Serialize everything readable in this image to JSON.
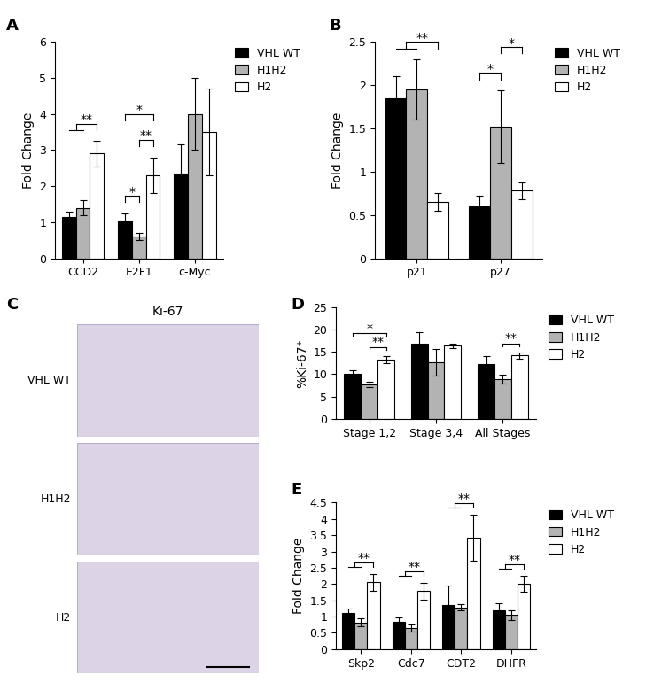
{
  "chart_data": [
    {
      "panel": "A",
      "type": "bar",
      "ylabel": "Fold Change",
      "categories": [
        "CCD2",
        "E2F1",
        "c-Myc"
      ],
      "series": [
        {
          "name": "VHL WT",
          "color": "#000000",
          "values": [
            1.15,
            1.05,
            2.35
          ],
          "errors": [
            0.15,
            0.2,
            0.8
          ]
        },
        {
          "name": "H1H2",
          "color": "#b3b3b3",
          "values": [
            1.4,
            0.6,
            4.0
          ],
          "errors": [
            0.2,
            0.1,
            1.0
          ]
        },
        {
          "name": "H2",
          "color": "#ffffff",
          "values": [
            2.9,
            2.3,
            3.5
          ],
          "errors": [
            0.35,
            0.5,
            1.2
          ]
        }
      ],
      "ylim": [
        0,
        6
      ],
      "yticks": [
        0,
        1,
        2,
        3,
        4,
        5,
        6
      ],
      "legend": "upper left",
      "significance": [
        {
          "category": "CCD2",
          "left": [
            "VHL WT",
            "H1H2"
          ],
          "right": [
            "H2"
          ],
          "text": "**"
        },
        {
          "category": "E2F1",
          "left": [
            "VHL WT"
          ],
          "right": [
            "H1H2"
          ],
          "text": "*"
        },
        {
          "category": "E2F1",
          "left": [
            "H1H2"
          ],
          "right": [
            "H2"
          ],
          "text": "**"
        },
        {
          "category": "E2F1",
          "left": [
            "VHL WT"
          ],
          "right": [
            "H2"
          ],
          "text": "*"
        }
      ]
    },
    {
      "panel": "B",
      "type": "bar",
      "ylabel": "Fold Change",
      "categories": [
        "p21",
        "p27"
      ],
      "series": [
        {
          "name": "VHL WT",
          "color": "#000000",
          "values": [
            1.85,
            0.6
          ],
          "errors": [
            0.25,
            0.12
          ]
        },
        {
          "name": "H1H2",
          "color": "#b3b3b3",
          "values": [
            1.95,
            1.52
          ],
          "errors": [
            0.35,
            0.42
          ]
        },
        {
          "name": "H2",
          "color": "#ffffff",
          "values": [
            0.65,
            0.78
          ],
          "errors": [
            0.1,
            0.1
          ]
        }
      ],
      "ylim": [
        0,
        2.5
      ],
      "yticks": [
        0,
        0.5,
        1,
        1.5,
        2,
        2.5
      ],
      "legend": "upper left",
      "significance": [
        {
          "category": "p21",
          "left": [
            "VHL WT",
            "H1H2"
          ],
          "right": [
            "H2"
          ],
          "text": "**"
        },
        {
          "category": "p27",
          "left": [
            "VHL WT"
          ],
          "right": [
            "H1H2"
          ],
          "text": "*"
        },
        {
          "category": "p27",
          "left": [
            "H1H2"
          ],
          "right": [
            "H2"
          ],
          "text": "*"
        }
      ]
    },
    {
      "panel": "C",
      "type": "image",
      "title": "Ki-67",
      "rows": [
        "VHL WT",
        "H1H2",
        "H2"
      ]
    },
    {
      "panel": "D",
      "type": "bar",
      "ylabel": "%Ki-67⁺",
      "categories": [
        "Stage 1,2",
        "Stage 3,4",
        "All Stages"
      ],
      "series": [
        {
          "name": "VHL WT",
          "color": "#000000",
          "values": [
            10.0,
            16.8,
            12.2
          ],
          "errors": [
            0.8,
            2.6,
            1.9
          ]
        },
        {
          "name": "H1H2",
          "color": "#b3b3b3",
          "values": [
            7.6,
            12.6,
            8.9
          ],
          "errors": [
            0.6,
            3.0,
            1.0
          ]
        },
        {
          "name": "H2",
          "color": "#ffffff",
          "values": [
            13.3,
            16.4,
            14.2
          ],
          "errors": [
            0.8,
            0.5,
            0.7
          ]
        }
      ],
      "ylim": [
        0,
        25
      ],
      "yticks": [
        0,
        5,
        10,
        15,
        20,
        25
      ],
      "legend": "upper left",
      "significance": [
        {
          "category": "Stage 1,2",
          "left": [
            "H1H2"
          ],
          "right": [
            "H2"
          ],
          "text": "**"
        },
        {
          "category": "Stage 1,2",
          "left": [
            "VHL WT"
          ],
          "right": [
            "H2"
          ],
          "text": "*"
        },
        {
          "category": "All Stages",
          "left": [
            "H1H2"
          ],
          "right": [
            "H2"
          ],
          "text": "**"
        }
      ]
    },
    {
      "panel": "E",
      "type": "bar",
      "ylabel": "Fold Change",
      "categories": [
        "Skp2",
        "Cdc7",
        "CDT2",
        "DHFR"
      ],
      "series": [
        {
          "name": "VHL WT",
          "color": "#000000",
          "values": [
            1.1,
            0.85,
            1.35,
            1.2
          ],
          "errors": [
            0.15,
            0.12,
            0.6,
            0.2
          ]
        },
        {
          "name": "H1H2",
          "color": "#b3b3b3",
          "values": [
            0.82,
            0.65,
            1.28,
            1.05
          ],
          "errors": [
            0.13,
            0.1,
            0.1,
            0.15
          ]
        },
        {
          "name": "H2",
          "color": "#ffffff",
          "values": [
            2.05,
            1.78,
            3.42,
            2.0
          ],
          "errors": [
            0.25,
            0.25,
            0.7,
            0.25
          ]
        }
      ],
      "ylim": [
        0,
        4.5
      ],
      "yticks": [
        0,
        0.5,
        1,
        1.5,
        2,
        2.5,
        3,
        3.5,
        4,
        4.5
      ],
      "legend": "upper left",
      "significance": [
        {
          "category": "Skp2",
          "left": [
            "VHL WT",
            "H1H2"
          ],
          "right": [
            "H2"
          ],
          "text": "**"
        },
        {
          "category": "Cdc7",
          "left": [
            "VHL WT",
            "H1H2"
          ],
          "right": [
            "H2"
          ],
          "text": "**"
        },
        {
          "category": "CDT2",
          "left": [
            "VHL WT",
            "H1H2"
          ],
          "right": [
            "H2"
          ],
          "text": "**"
        },
        {
          "category": "DHFR",
          "left": [
            "VHL WT",
            "H1H2"
          ],
          "right": [
            "H2"
          ],
          "text": "**"
        }
      ]
    }
  ]
}
